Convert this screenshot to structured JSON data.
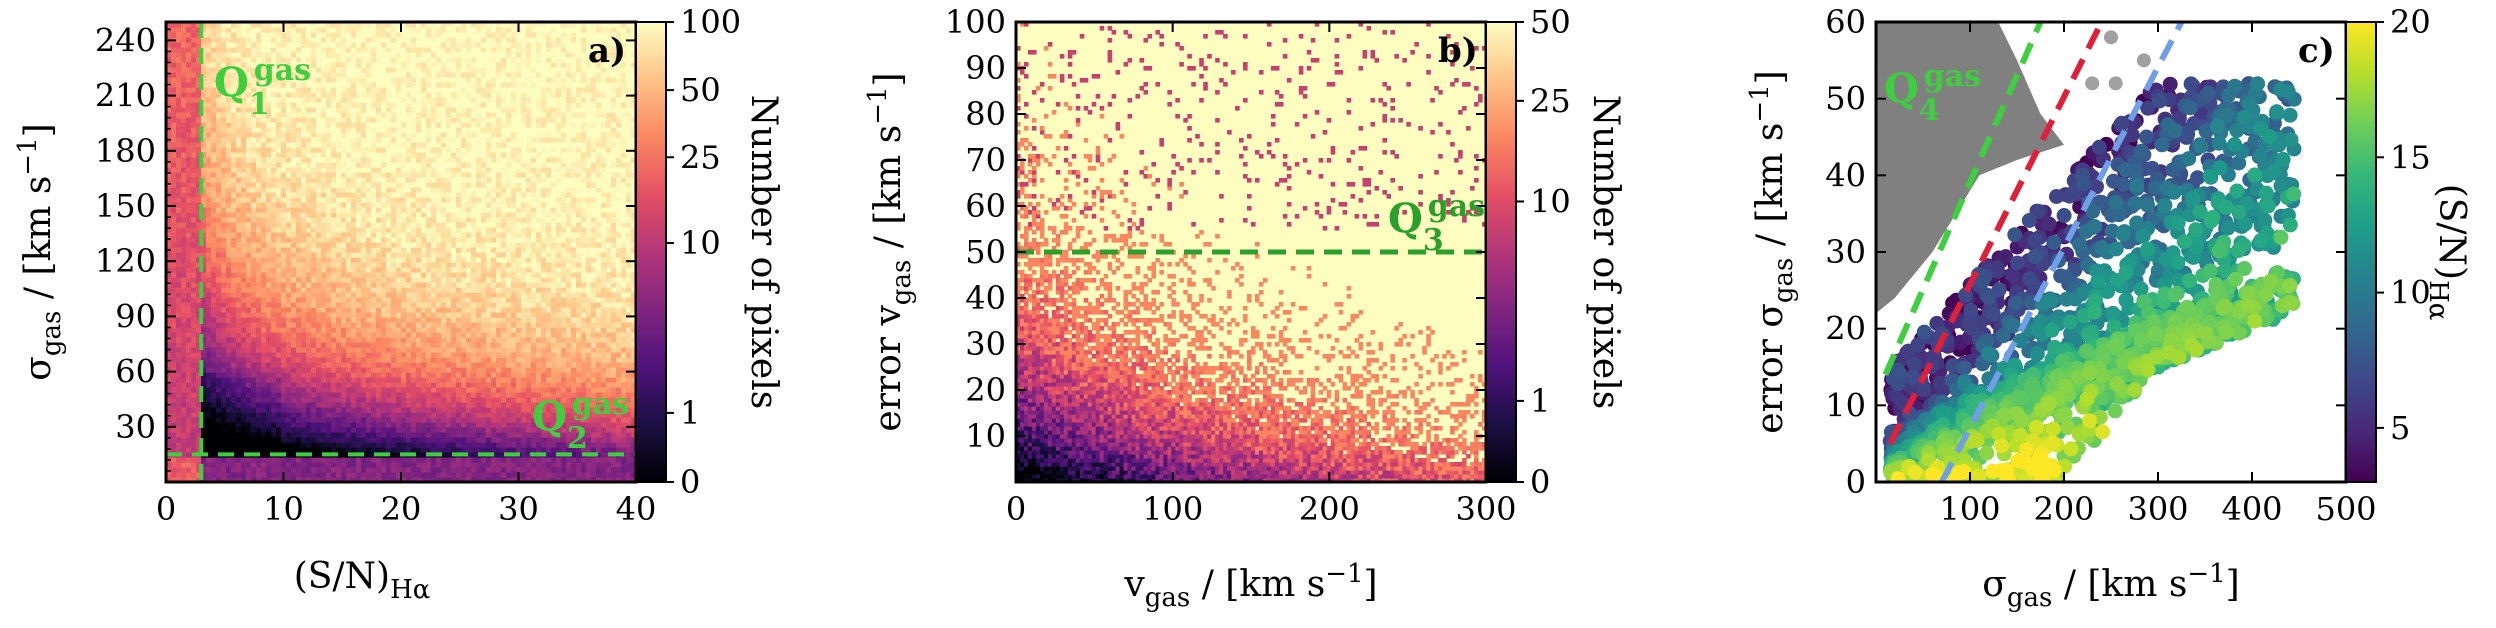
{
  "colors": {
    "magma": [
      "#000004",
      "#1c1044",
      "#4f127b",
      "#812581",
      "#b5367a",
      "#e55064",
      "#fb8761",
      "#fec287",
      "#fcfdbf"
    ],
    "viridis": [
      "#440154",
      "#482878",
      "#3e4989",
      "#31688e",
      "#26828e",
      "#1f9e89",
      "#35b779",
      "#6ece58",
      "#b5de2b",
      "#fde725"
    ],
    "green_line": "#2ca02c",
    "bright_green_line": "#3ecf3e",
    "red_line": "#e0203a",
    "blue_line": "#6f9fe8",
    "masked_gray": "#808080",
    "bright_gray": "#a0a0a0"
  },
  "chart_data": [
    {
      "type": "heatmap",
      "panel_label": "a)",
      "xlabel": "(S/N)",
      "xlabel_sub": "Hα",
      "ylabel": "σ",
      "ylabel_sub": "gas",
      "ylabel_unit": " / [km s",
      "ylabel_sup": "−1",
      "ylabel_close": "]",
      "xlim": [
        0,
        40
      ],
      "ylim": [
        0,
        250
      ],
      "xticks": [
        0,
        10,
        20,
        30,
        40
      ],
      "xtick_labels": [
        "0",
        "10",
        "20",
        "30",
        "40"
      ],
      "yticks": [
        30,
        60,
        90,
        120,
        150,
        180,
        210,
        240
      ],
      "ytick_labels": [
        "30",
        "60",
        "90",
        "120",
        "150",
        "180",
        "210",
        "240"
      ],
      "cuts": [
        {
          "orientation": "vertical",
          "x": 3
        },
        {
          "orientation": "horizontal",
          "y": 15
        }
      ],
      "annotations": [
        {
          "main": "Q",
          "sub": "1",
          "sup": "gas",
          "x": 4,
          "y": 210
        },
        {
          "main": "Q",
          "sub": "2",
          "sup": "gas",
          "x": 31,
          "y": 22
        }
      ],
      "colorbar": {
        "label": "Number of pixels",
        "ticks": [
          0,
          1,
          10,
          25,
          50,
          100
        ],
        "tick_labels": [
          "0",
          "1",
          "10",
          "25",
          "50",
          "100"
        ]
      }
    },
    {
      "type": "heatmap",
      "panel_label": "b)",
      "xlabel": "v",
      "xlabel_sub": "gas",
      "xlabel_unit": " / [km s",
      "xlabel_sup": "−1",
      "xlabel_close": "]",
      "ylabel": "error v",
      "ylabel_sub": "gas",
      "ylabel_unit": " / [km s",
      "ylabel_sup": "−1",
      "ylabel_close": "]",
      "xlim": [
        0,
        300
      ],
      "ylim": [
        0,
        100
      ],
      "xticks": [
        0,
        100,
        200,
        300
      ],
      "xtick_labels": [
        "0",
        "100",
        "200",
        "300"
      ],
      "yticks": [
        10,
        20,
        30,
        40,
        50,
        60,
        70,
        80,
        90,
        100
      ],
      "ytick_labels": [
        "10",
        "20",
        "30",
        "40",
        "50",
        "60",
        "70",
        "80",
        "90",
        "100"
      ],
      "cuts": [
        {
          "orientation": "horizontal",
          "y": 50
        }
      ],
      "annotations": [
        {
          "main": "Q",
          "sub": "3",
          "sup": "gas",
          "x": 243,
          "y": 55
        }
      ],
      "colorbar": {
        "label": "Number of pixels",
        "ticks": [
          0,
          1,
          10,
          25,
          50
        ],
        "tick_labels": [
          "0",
          "1",
          "10",
          "25",
          "50"
        ]
      }
    },
    {
      "type": "scatter",
      "panel_label": "c)",
      "xlabel": "σ",
      "xlabel_sub": "gas",
      "xlabel_unit": " / [km s",
      "xlabel_sup": "−1",
      "xlabel_close": "]",
      "ylabel": "error σ",
      "ylabel_sub": "gas",
      "ylabel_unit": " / [km s",
      "ylabel_sup": "−1",
      "ylabel_close": "]",
      "xlim": [
        0,
        500
      ],
      "ylim": [
        0,
        60
      ],
      "xticks": [
        100,
        200,
        300,
        400,
        500
      ],
      "xtick_labels": [
        "100",
        "200",
        "300",
        "400",
        "500"
      ],
      "yticks": [
        0,
        10,
        20,
        30,
        40,
        50,
        60
      ],
      "ytick_labels": [
        "0",
        "10",
        "20",
        "30",
        "40",
        "50",
        "60"
      ],
      "lines": [
        {
          "name": "green",
          "x1": 10,
          "y1": 14,
          "x2": 175,
          "y2": 60
        },
        {
          "name": "red",
          "x1": 15,
          "y1": 5,
          "x2": 240,
          "y2": 60
        },
        {
          "name": "blue",
          "x1": 70,
          "y1": 0,
          "x2": 325,
          "y2": 60
        }
      ],
      "annotations": [
        {
          "main": "Q",
          "sub": "4",
          "sup": "gas",
          "x": 20,
          "y": 48
        }
      ],
      "colorbar": {
        "label": "(S/N)",
        "label_sub": "Hα",
        "vmin": 3,
        "vmax": 20,
        "ticks": [
          5,
          10,
          15,
          20
        ],
        "tick_labels": [
          "5",
          "10",
          "15",
          "20"
        ]
      }
    }
  ]
}
